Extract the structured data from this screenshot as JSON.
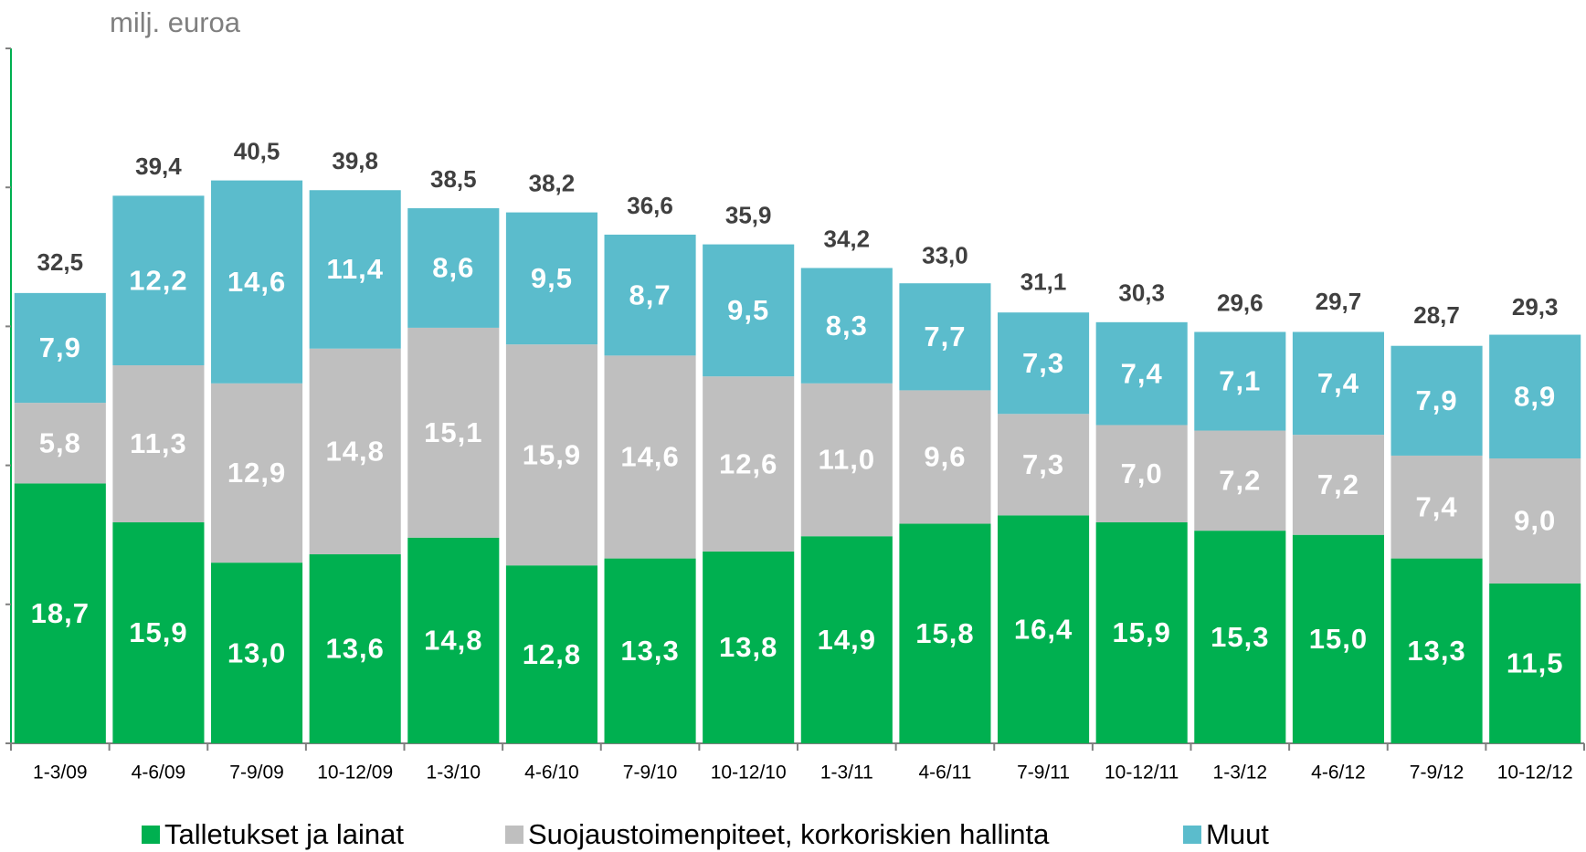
{
  "chart_data": {
    "type": "stacked-bar",
    "y_label": "milj. euroa",
    "categories": [
      "1-3/09",
      "4-6/09",
      "7-9/09",
      "10-12/09",
      "1-3/10",
      "4-6/10",
      "7-9/10",
      "10-12/10",
      "1-3/11",
      "4-6/11",
      "7-9/11",
      "10-12/11",
      "1-3/12",
      "4-6/12",
      "7-9/12",
      "10-12/12"
    ],
    "series": [
      {
        "name": "Talletukset ja lainat",
        "color": "#00b050",
        "values": [
          18.7,
          15.9,
          13.0,
          13.6,
          14.8,
          12.8,
          13.3,
          13.8,
          14.9,
          15.8,
          16.4,
          15.9,
          15.3,
          15.0,
          13.3,
          11.5
        ],
        "value_labels": [
          "18,7",
          "15,9",
          "13,0",
          "13,6",
          "14,8",
          "12,8",
          "13,3",
          "13,8",
          "14,9",
          "15,8",
          "16,4",
          "15,9",
          "15,3",
          "15,0",
          "13,3",
          "11,5"
        ]
      },
      {
        "name": "Suojaustoimenpiteet, korkoriskien hallinta",
        "color": "#bfbfbf",
        "values": [
          5.8,
          11.3,
          12.9,
          14.8,
          15.1,
          15.9,
          14.6,
          12.6,
          11.0,
          9.6,
          7.3,
          7.0,
          7.2,
          7.2,
          7.4,
          9.0
        ],
        "value_labels": [
          "5,8",
          "11,3",
          "12,9",
          "14,8",
          "15,1",
          "15,9",
          "14,6",
          "12,6",
          "11,0",
          "9,6",
          "7,3",
          "7,0",
          "7,2",
          "7,2",
          "7,4",
          "9,0"
        ]
      },
      {
        "name": "Muut",
        "color": "#5bbccc",
        "values": [
          7.9,
          12.2,
          14.6,
          11.4,
          8.6,
          9.5,
          8.7,
          9.5,
          8.3,
          7.7,
          7.3,
          7.4,
          7.1,
          7.4,
          7.9,
          8.9
        ],
        "value_labels": [
          "7,9",
          "12,2",
          "14,6",
          "11,4",
          "8,6",
          "9,5",
          "8,7",
          "9,5",
          "8,3",
          "7,7",
          "7,3",
          "7,4",
          "7,1",
          "7,4",
          "7,9",
          "8,9"
        ]
      }
    ],
    "totals": [
      32.5,
      39.4,
      40.5,
      39.8,
      38.5,
      38.2,
      36.6,
      35.9,
      34.2,
      33.0,
      31.1,
      30.3,
      29.6,
      29.7,
      28.7,
      29.3
    ],
    "total_labels": [
      "32,5",
      "39,4",
      "40,5",
      "39,8",
      "38,5",
      "38,2",
      "36,6",
      "35,9",
      "34,2",
      "33,0",
      "31,1",
      "30,3",
      "29,6",
      "29,7",
      "28,7",
      "29,3"
    ],
    "ylim": [
      0,
      50
    ],
    "yticks": [
      0,
      10,
      20,
      30,
      40,
      50
    ]
  }
}
